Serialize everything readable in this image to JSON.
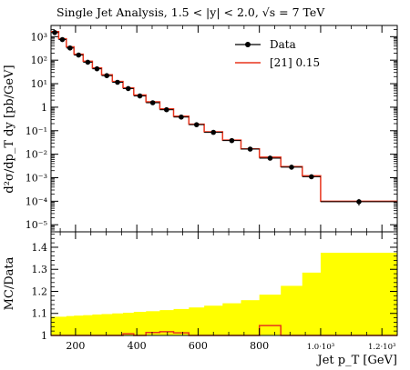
{
  "chart_data": [
    {
      "type": "line",
      "title": "Single Jet Analysis, 1.5 < |y| < 2.0, √s = 7 TeV",
      "ylabel": "d²σ/dp_T dy [pb/GeV]",
      "yscale": "log",
      "xlim": [
        120,
        1250
      ],
      "ylim": [
        5e-06,
        3000
      ],
      "yticks": [
        "10³",
        "10²",
        "10¹",
        "1",
        "10⁻¹",
        "10⁻²",
        "10⁻³",
        "10⁻⁴",
        "10⁻⁵"
      ],
      "legend": "top-right",
      "bin_edges": [
        120,
        145,
        170,
        195,
        225,
        255,
        285,
        320,
        355,
        390,
        430,
        475,
        520,
        570,
        620,
        680,
        740,
        800,
        870,
        940,
        1000,
        1250
      ],
      "series": [
        {
          "name": "Data",
          "style": "markers",
          "x": [
            132,
            157,
            182,
            210,
            240,
            270,
            302,
            337,
            372,
            410,
            452,
            497,
            545,
            595,
            650,
            710,
            770,
            835,
            905,
            970,
            1125
          ],
          "y": [
            1500,
            750,
            330,
            165,
            82,
            43,
            22,
            11.5,
            6.2,
            3.0,
            1.55,
            0.78,
            0.38,
            0.18,
            0.085,
            0.038,
            0.0165,
            0.0068,
            0.0028,
            0.0011,
            9.5e-05
          ],
          "yerr_low": [
            0,
            0,
            0,
            0,
            0,
            0,
            0,
            0,
            0,
            0,
            0,
            0,
            0,
            0,
            0,
            0,
            0,
            0,
            0,
            0,
            3e-05
          ],
          "yerr_high": [
            0,
            0,
            0,
            0,
            0,
            0,
            0,
            0,
            0,
            0,
            0,
            0,
            0,
            0,
            0,
            0,
            0,
            0,
            0,
            0.00025,
            3e-05
          ]
        },
        {
          "name": "[21] 0.15",
          "style": "histogram",
          "color": "#e8341c",
          "y": [
            1650,
            820,
            370,
            180,
            90,
            47,
            24,
            12.5,
            6.7,
            3.3,
            1.7,
            0.85,
            0.41,
            0.19,
            0.09,
            0.04,
            0.017,
            0.0075,
            0.003,
            0.0012,
            0.0001
          ]
        }
      ]
    },
    {
      "type": "line",
      "ylabel": "MC/Data",
      "xlabel": "Jet p_T [GeV]",
      "xlim": [
        120,
        1250
      ],
      "ylim": [
        1.0,
        1.47
      ],
      "yticks": [
        "1",
        "1.1",
        "1.2",
        "1.3",
        "1.4"
      ],
      "xticks": [
        "200",
        "400",
        "600",
        "800",
        "1.0·10³",
        "1.2·10³"
      ],
      "bin_edges": [
        120,
        145,
        170,
        195,
        225,
        255,
        285,
        320,
        355,
        390,
        430,
        475,
        520,
        570,
        620,
        680,
        740,
        800,
        870,
        940,
        1000,
        1250
      ],
      "series": [
        {
          "name": "band",
          "style": "band",
          "color": "#ffff00",
          "upper": [
            1.085,
            1.085,
            1.088,
            1.09,
            1.092,
            1.095,
            1.097,
            1.1,
            1.103,
            1.107,
            1.11,
            1.115,
            1.12,
            1.127,
            1.135,
            1.146,
            1.16,
            1.185,
            1.225,
            1.285,
            1.375
          ]
        },
        {
          "name": "[21] 0.15",
          "style": "histogram",
          "color": "#e8341c",
          "y": [
            1.0,
            1.0,
            1.0,
            1.0,
            1.0,
            1.0,
            1.0,
            1.0,
            1.008,
            1.0,
            1.013,
            1.017,
            1.012,
            1.0,
            1.0,
            1.0,
            1.0,
            1.045,
            1.0,
            1.0,
            1.0
          ]
        }
      ]
    }
  ]
}
